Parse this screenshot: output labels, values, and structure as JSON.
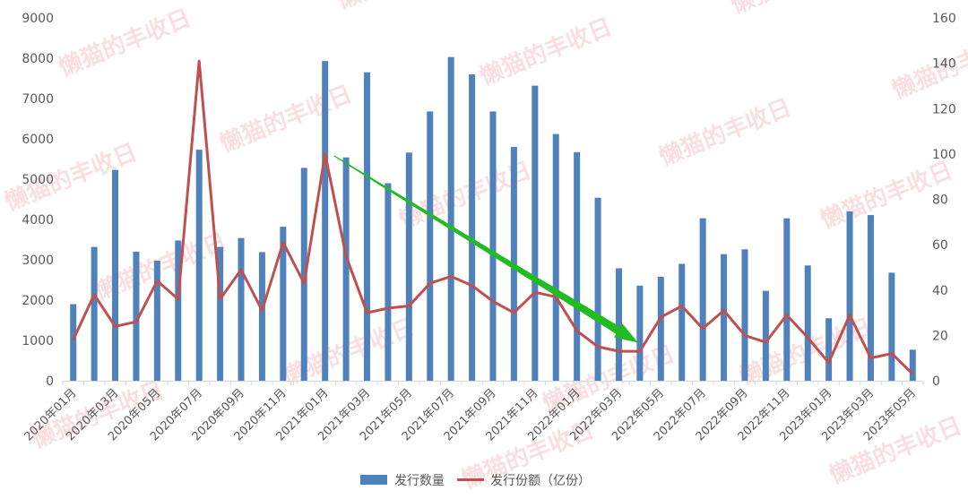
{
  "chart_data": {
    "type": "bar+line",
    "categories": [
      "2020年01月",
      "2020年02月",
      "2020年03月",
      "2020年04月",
      "2020年05月",
      "2020年06月",
      "2020年07月",
      "2020年08月",
      "2020年09月",
      "2020年10月",
      "2020年11月",
      "2020年12月",
      "2021年01月",
      "2021年02月",
      "2021年03月",
      "2021年04月",
      "2021年05月",
      "2021年06月",
      "2021年07月",
      "2021年08月",
      "2021年09月",
      "2021年10月",
      "2021年11月",
      "2021年12月",
      "2022年01月",
      "2022年02月",
      "2022年03月",
      "2022年04月",
      "2022年05月",
      "2022年06月",
      "2022年07月",
      "2022年08月",
      "2022年09月",
      "2022年10月",
      "2022年11月",
      "2022年12月",
      "2023年01月",
      "2023年02月",
      "2023年03月",
      "2023年04月",
      "2023年05月"
    ],
    "x_tick_labels": [
      "2020年01月",
      "2020年03月",
      "2020年05月",
      "2020年07月",
      "2020年09月",
      "2020年11月",
      "2021年01月",
      "2021年03月",
      "2021年05月",
      "2021年07月",
      "2021年09月",
      "2021年11月",
      "2022年01月",
      "2022年03月",
      "2022年05月",
      "2022年07月",
      "2022年09月",
      "2022年11月",
      "2023年01月",
      "2023年03月",
      "2023年05月"
    ],
    "series": [
      {
        "name": "发行数量",
        "type": "bar",
        "axis": "left",
        "color": "#4f81bd",
        "values": [
          1900,
          3320,
          5230,
          3200,
          2980,
          3480,
          5730,
          3320,
          3540,
          3190,
          3820,
          5280,
          7930,
          5540,
          7650,
          4900,
          5660,
          6680,
          8030,
          7600,
          6680,
          5800,
          7320,
          6120,
          5670,
          4540,
          2790,
          2360,
          2580,
          2900,
          4030,
          3140,
          3260,
          2230,
          4030,
          2860,
          1550,
          4200,
          4110,
          2680,
          770
        ]
      },
      {
        "name": "发行份额（亿份）",
        "type": "line",
        "axis": "right",
        "color": "#c0504d",
        "values": [
          18,
          38,
          24,
          26,
          44,
          36,
          141,
          36,
          49,
          31,
          61,
          43,
          100,
          55,
          30,
          32,
          33,
          43,
          46,
          42,
          35,
          30,
          39,
          37,
          22,
          15,
          13,
          13,
          28,
          33,
          23,
          31,
          20,
          17,
          29,
          19,
          8,
          29,
          10,
          12,
          3
        ]
      }
    ],
    "y_left": {
      "min": 0,
      "max": 9000,
      "ticks": [
        0,
        1000,
        2000,
        3000,
        4000,
        5000,
        6000,
        7000,
        8000,
        9000
      ]
    },
    "y_right": {
      "min": 0,
      "max": 160,
      "ticks": [
        0,
        20,
        40,
        60,
        80,
        100,
        120,
        140,
        160
      ]
    },
    "annotation": {
      "type": "arrow",
      "color": "#22bb22",
      "from": {
        "x": "2021年01月",
        "y_right": 100
      },
      "to": {
        "x": "2022年04月",
        "y_right": 16
      }
    },
    "legend_position": "bottom-center",
    "grid": false,
    "watermark": "懒猫的丰收日"
  }
}
